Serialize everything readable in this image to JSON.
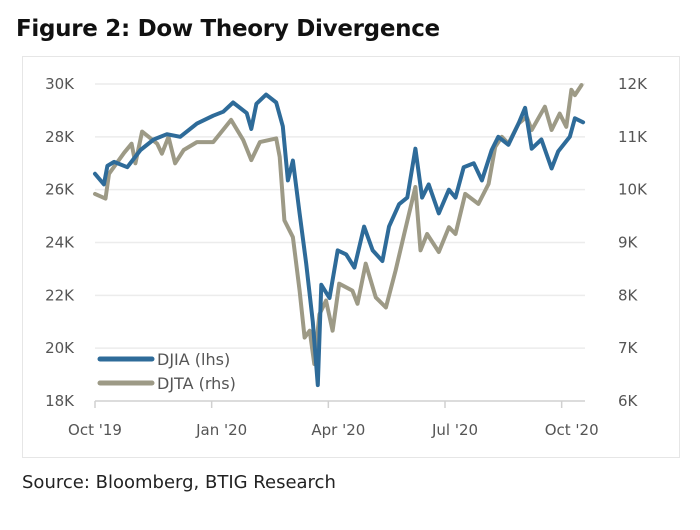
{
  "title": "Figure 2: Dow Theory Divergence",
  "source": "Source: Bloomberg, BTIG Research",
  "chart_data": {
    "type": "line",
    "title": "Figure 2: Dow Theory Divergence",
    "x_unit": "months since Oct 2019",
    "xlim": [
      0,
      12.6
    ],
    "x_ticks": [
      {
        "x": 0,
        "label": "Oct '19"
      },
      {
        "x": 3,
        "label": "Jan '20"
      },
      {
        "x": 6,
        "label": "Apr '20"
      },
      {
        "x": 9,
        "label": "Jul '20"
      },
      {
        "x": 12,
        "label": "Oct '20"
      }
    ],
    "y_left": {
      "range": [
        18,
        30
      ],
      "unit": "K",
      "ticks": [
        "18K",
        "20K",
        "22K",
        "24K",
        "26K",
        "28K",
        "30K"
      ]
    },
    "y_right": {
      "range": [
        6,
        12
      ],
      "unit": "K",
      "ticks": [
        "6K",
        "7K",
        "8K",
        "9K",
        "10K",
        "11K",
        "12K"
      ]
    },
    "grid": true,
    "legend_position": "bottom-left",
    "colors": {
      "DJIA": "#2e6b99",
      "DJTA": "#9d9a86",
      "grid": "#ececec",
      "axis": "#d0d0d0"
    },
    "series": [
      {
        "name": "DJIA (lhs)",
        "axis": "left",
        "x": [
          0,
          0.23,
          0.32,
          0.49,
          0.83,
          1.17,
          1.51,
          1.85,
          2.19,
          2.62,
          3.04,
          3.3,
          3.55,
          3.9,
          4.02,
          4.15,
          4.4,
          4.66,
          4.83,
          4.96,
          5.09,
          5.26,
          5.43,
          5.6,
          5.73,
          5.82,
          6.03,
          6.24,
          6.46,
          6.67,
          6.92,
          7.14,
          7.39,
          7.56,
          7.82,
          8.03,
          8.24,
          8.41,
          8.58,
          8.84,
          9.1,
          9.27,
          9.48,
          9.74,
          9.95,
          10.2,
          10.37,
          10.63,
          10.89,
          11.06,
          11.23,
          11.48,
          11.74,
          11.91,
          12.21,
          12.34,
          12.55
        ],
        "values": [
          26.6,
          26.2,
          26.9,
          27.05,
          26.85,
          27.5,
          27.9,
          28.1,
          28.0,
          28.5,
          28.8,
          28.95,
          29.3,
          28.9,
          28.3,
          29.25,
          29.6,
          29.3,
          28.4,
          26.35,
          27.1,
          25.1,
          23.2,
          21.0,
          18.6,
          22.4,
          21.9,
          23.7,
          23.55,
          23.05,
          24.6,
          23.7,
          23.3,
          24.6,
          25.45,
          25.7,
          27.55,
          25.7,
          26.2,
          25.1,
          26.0,
          25.7,
          26.85,
          27.0,
          26.35,
          27.5,
          28.0,
          27.7,
          28.5,
          29.1,
          27.55,
          27.9,
          26.8,
          27.45,
          28.0,
          28.7,
          28.55
        ]
      },
      {
        "name": "DJTA (rhs)",
        "axis": "right",
        "x": [
          0,
          0.27,
          0.36,
          0.75,
          0.94,
          1.04,
          1.21,
          1.6,
          1.72,
          1.89,
          2.06,
          2.28,
          2.62,
          3.04,
          3.5,
          3.81,
          4.02,
          4.24,
          4.66,
          4.75,
          4.87,
          5.09,
          5.26,
          5.39,
          5.52,
          5.64,
          5.77,
          5.94,
          6.11,
          6.28,
          6.62,
          6.75,
          6.96,
          7.22,
          7.48,
          7.73,
          7.95,
          8.24,
          8.37,
          8.54,
          8.84,
          9.1,
          9.27,
          9.52,
          9.86,
          10.12,
          10.29,
          10.46,
          10.63,
          10.89,
          11.1,
          11.23,
          11.57,
          11.74,
          11.95,
          12.12,
          12.25,
          12.34,
          12.51
        ],
        "values": [
          9.92,
          9.83,
          10.3,
          10.7,
          10.87,
          10.5,
          11.1,
          10.87,
          10.68,
          11.0,
          10.5,
          10.75,
          10.9,
          10.9,
          11.32,
          10.94,
          10.56,
          10.9,
          10.97,
          10.62,
          9.42,
          9.1,
          8.09,
          7.2,
          7.33,
          6.7,
          7.64,
          7.9,
          7.33,
          8.22,
          8.09,
          7.84,
          8.6,
          7.96,
          7.77,
          8.47,
          9.16,
          10.05,
          8.85,
          9.16,
          8.82,
          9.29,
          9.16,
          9.92,
          9.73,
          10.11,
          10.81,
          11.0,
          10.87,
          11.25,
          11.38,
          11.13,
          11.57,
          11.13,
          11.44,
          11.19,
          11.89,
          11.79,
          11.98
        ]
      }
    ]
  }
}
